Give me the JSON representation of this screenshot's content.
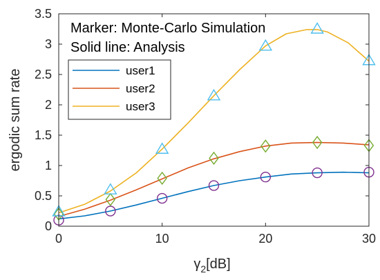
{
  "chart_data": {
    "type": "line",
    "xlabel_main": "γ",
    "xlabel_sub": "2",
    "xlabel_unit": "[dB]",
    "ylabel": "ergodic sum rate",
    "xlim": [
      0,
      30
    ],
    "ylim": [
      0,
      3.5
    ],
    "xticks": [
      0,
      10,
      20,
      30
    ],
    "yticks": [
      0,
      0.5,
      1,
      1.5,
      2,
      2.5,
      3,
      3.5
    ],
    "xtick_labels": [
      "0",
      "10",
      "20",
      "30"
    ],
    "ytick_labels": [
      "0",
      "0.5",
      "1",
      "1.5",
      "2",
      "2.5",
      "3",
      "3.5"
    ],
    "grid": false,
    "annotations": [
      "Marker: Monte-Carlo Simulation",
      "Solid line: Analysis"
    ],
    "legend_position": "upper-left",
    "series": [
      {
        "name": "user1",
        "color": "#0072BD",
        "marker": "circle",
        "marker_color": "#7E2F8E",
        "line_x": [
          0,
          2.5,
          5,
          7.5,
          10,
          12.5,
          15,
          17.5,
          20,
          22.5,
          25,
          27.5,
          30
        ],
        "line_y": [
          0.12,
          0.17,
          0.25,
          0.35,
          0.46,
          0.57,
          0.67,
          0.75,
          0.81,
          0.86,
          0.88,
          0.89,
          0.88
        ],
        "marker_x": [
          0,
          5,
          10,
          15,
          20,
          25,
          30
        ],
        "marker_y": [
          0.1,
          0.25,
          0.46,
          0.67,
          0.81,
          0.88,
          0.89
        ]
      },
      {
        "name": "user2",
        "color": "#D95319",
        "marker": "diamond",
        "marker_color": "#77AC30",
        "line_x": [
          0,
          2.5,
          5,
          7.5,
          10,
          12.5,
          15,
          17.5,
          20,
          22.5,
          25,
          27.5,
          30
        ],
        "line_y": [
          0.16,
          0.28,
          0.43,
          0.6,
          0.78,
          0.96,
          1.11,
          1.23,
          1.32,
          1.37,
          1.38,
          1.37,
          1.34
        ],
        "marker_x": [
          0,
          5,
          10,
          15,
          20,
          25,
          30
        ],
        "marker_y": [
          0.2,
          0.44,
          0.79,
          1.12,
          1.32,
          1.38,
          1.33
        ]
      },
      {
        "name": "user3",
        "color": "#EDB120",
        "marker": "triangle",
        "marker_color": "#4DBEEE",
        "line_x": [
          0,
          2.5,
          5,
          7.5,
          10,
          12.5,
          15,
          17.5,
          20,
          22,
          24,
          25,
          26,
          28,
          30
        ],
        "line_y": [
          0.22,
          0.36,
          0.58,
          0.88,
          1.27,
          1.7,
          2.15,
          2.58,
          2.97,
          3.17,
          3.24,
          3.24,
          3.2,
          3.02,
          2.72
        ],
        "marker_x": [
          0,
          5,
          10,
          15,
          20,
          25,
          30
        ],
        "marker_y": [
          0.24,
          0.6,
          1.27,
          2.15,
          2.97,
          3.25,
          2.73
        ]
      }
    ]
  }
}
